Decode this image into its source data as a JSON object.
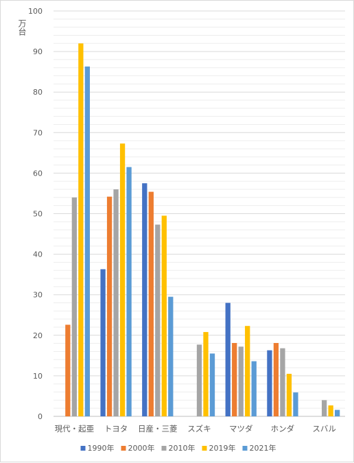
{
  "chart_data": {
    "type": "bar",
    "unit_label": "万台",
    "categories": [
      "現代・起亜",
      "トヨタ",
      "日産・三菱",
      "スズキ",
      "マツダ",
      "ホンダ",
      "スバル"
    ],
    "series": [
      {
        "name": "1990年",
        "color": "#4472C4",
        "values": [
          null,
          36.3,
          57.5,
          null,
          28.0,
          16.3,
          null
        ]
      },
      {
        "name": "2000年",
        "color": "#ED7D31",
        "values": [
          22.6,
          54.2,
          55.4,
          null,
          18.1,
          18.1,
          null
        ]
      },
      {
        "name": "2010年",
        "color": "#A5A5A5",
        "values": [
          54.0,
          56.0,
          47.3,
          17.7,
          17.2,
          16.8,
          4.0
        ]
      },
      {
        "name": "2019年",
        "color": "#FFC000",
        "values": [
          92.0,
          67.3,
          49.5,
          20.8,
          22.3,
          10.5,
          2.7
        ]
      },
      {
        "name": "2021年",
        "color": "#5B9BD5",
        "values": [
          86.3,
          61.5,
          29.5,
          15.5,
          13.6,
          5.9,
          1.6
        ]
      }
    ],
    "ylim": [
      0,
      100
    ],
    "yticks": [
      0,
      10,
      20,
      30,
      40,
      50,
      60,
      70,
      80,
      90,
      100
    ],
    "gridlines": true,
    "legend_position": "bottom"
  }
}
